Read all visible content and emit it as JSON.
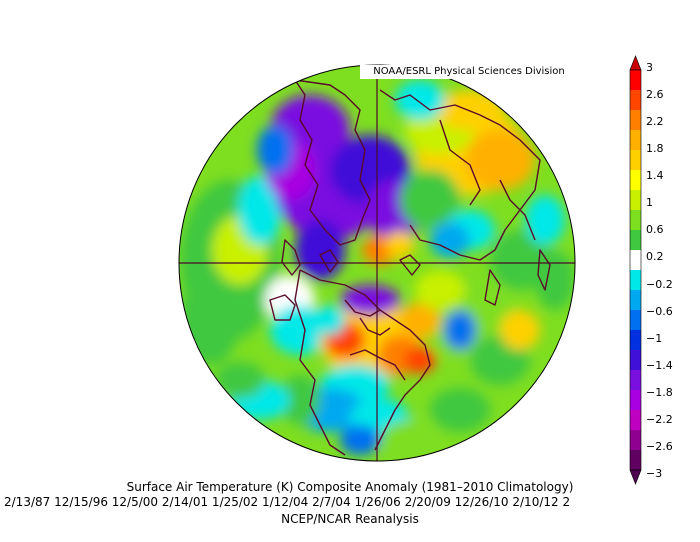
{
  "map": {
    "credit": "NOAA/ESRL Physical Sciences Division",
    "title": "Surface Air Temperature (K) Composite Anomaly (1981–2010 Climatology)",
    "dates": "2/13/87 12/15/96 12/5/00 2/14/01 1/25/02 1/12/04 2/7/04 1/26/06 2/20/09 12/26/10 2/10/12 2",
    "source": "NCEP/NCAR Reanalysis",
    "projection": "north polar stereographic",
    "colorbar": {
      "labels": [
        "3",
        "2.6",
        "2.2",
        "1.8",
        "1.4",
        "1",
        "0.6",
        "0.2",
        "−0.2",
        "−0.6",
        "−1",
        "−1.4",
        "−1.8",
        "−2.2",
        "−2.6",
        "−3"
      ],
      "colors": [
        "#ff0000",
        "#ff4500",
        "#ff8000",
        "#ffb000",
        "#ffd000",
        "#ffff00",
        "#c8f000",
        "#7ede20",
        "#40c840",
        "#ffffff",
        "#00e8e8",
        "#00a8f0",
        "#0070f0",
        "#0030e0",
        "#4010d8",
        "#7a10e0",
        "#a800e0",
        "#c000c0",
        "#900090",
        "#600060"
      ],
      "over_color": "#cc0000",
      "under_color": "#500050"
    }
  }
}
